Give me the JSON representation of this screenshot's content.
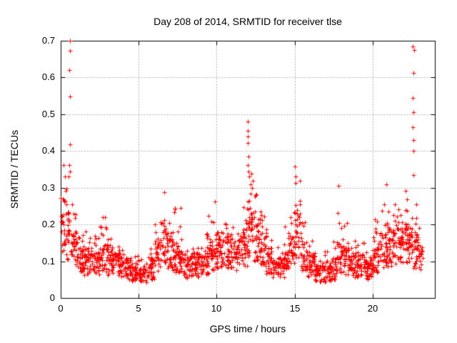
{
  "chart": {
    "title": "Day 208 of 2014, SRMTID for receiver tlse",
    "xlabel": "GPS time / hours",
    "ylabel": "SRMTID / TECUs",
    "x_ticks": [
      0,
      5,
      10,
      15,
      20
    ],
    "x_tick_labels": [
      "0",
      "5",
      "10",
      "15",
      "20"
    ],
    "y_ticks": [
      0,
      0.1,
      0.2,
      0.3,
      0.4,
      0.5,
      0.6,
      0.7
    ],
    "y_tick_labels": [
      "0",
      "0.1",
      "0.2",
      "0.3",
      "0.4",
      "0.5",
      "0.6",
      "0.7"
    ],
    "xlim": [
      0,
      24
    ],
    "ylim": [
      0,
      0.7
    ],
    "grid": true,
    "colors": {
      "marker": "#ff0000",
      "grid": "#b0b0b0",
      "axis": "#000000",
      "background": "#ffffff"
    }
  },
  "chart_data": {
    "type": "scatter",
    "series_name": "SRMTID",
    "marker": "plus",
    "marker_size": 7,
    "seed": 7,
    "x_units": "hours",
    "y_units": "TECUs",
    "band_bins_format": [
      "hour_start",
      "hour_end",
      "median",
      "max",
      "count"
    ],
    "band_bins": [
      [
        0.0,
        0.3,
        0.2,
        0.37,
        26
      ],
      [
        0.3,
        0.6,
        0.17,
        0.33,
        26
      ],
      [
        0.6,
        1.0,
        0.13,
        0.26,
        30
      ],
      [
        1.0,
        1.5,
        0.11,
        0.2,
        40
      ],
      [
        1.5,
        2.0,
        0.1,
        0.18,
        40
      ],
      [
        2.0,
        2.5,
        0.1,
        0.17,
        40
      ],
      [
        2.5,
        3.0,
        0.11,
        0.22,
        40
      ],
      [
        3.0,
        3.5,
        0.1,
        0.17,
        40
      ],
      [
        3.5,
        4.0,
        0.09,
        0.15,
        40
      ],
      [
        4.0,
        4.5,
        0.08,
        0.14,
        40
      ],
      [
        4.5,
        5.0,
        0.07,
        0.12,
        38
      ],
      [
        5.0,
        5.5,
        0.065,
        0.11,
        36
      ],
      [
        5.5,
        6.0,
        0.08,
        0.16,
        38
      ],
      [
        6.0,
        6.4,
        0.12,
        0.22,
        30
      ],
      [
        6.4,
        6.8,
        0.15,
        0.29,
        32
      ],
      [
        6.8,
        7.2,
        0.13,
        0.22,
        32
      ],
      [
        7.2,
        7.6,
        0.11,
        0.25,
        32
      ],
      [
        7.6,
        8.0,
        0.1,
        0.22,
        32
      ],
      [
        8.0,
        8.5,
        0.085,
        0.15,
        40
      ],
      [
        8.5,
        9.0,
        0.09,
        0.16,
        40
      ],
      [
        9.0,
        9.5,
        0.1,
        0.18,
        40
      ],
      [
        9.5,
        10.0,
        0.12,
        0.26,
        40
      ],
      [
        10.0,
        10.5,
        0.13,
        0.22,
        42
      ],
      [
        10.5,
        11.0,
        0.13,
        0.22,
        42
      ],
      [
        11.0,
        11.5,
        0.12,
        0.2,
        40
      ],
      [
        11.5,
        12.0,
        0.14,
        0.28,
        40
      ],
      [
        12.0,
        12.4,
        0.18,
        0.34,
        34
      ],
      [
        12.4,
        12.8,
        0.16,
        0.3,
        34
      ],
      [
        12.8,
        13.2,
        0.13,
        0.24,
        34
      ],
      [
        13.2,
        13.6,
        0.1,
        0.18,
        34
      ],
      [
        13.6,
        14.1,
        0.08,
        0.14,
        38
      ],
      [
        14.1,
        14.6,
        0.09,
        0.2,
        38
      ],
      [
        14.6,
        15.0,
        0.13,
        0.28,
        32
      ],
      [
        15.0,
        15.4,
        0.17,
        0.33,
        34
      ],
      [
        15.4,
        15.8,
        0.12,
        0.22,
        32
      ],
      [
        15.8,
        16.3,
        0.09,
        0.16,
        38
      ],
      [
        16.3,
        16.8,
        0.07,
        0.12,
        38
      ],
      [
        16.8,
        17.3,
        0.07,
        0.13,
        38
      ],
      [
        17.3,
        17.7,
        0.08,
        0.18,
        30
      ],
      [
        17.7,
        18.1,
        0.11,
        0.3,
        32
      ],
      [
        18.1,
        18.5,
        0.1,
        0.24,
        32
      ],
      [
        18.5,
        19.0,
        0.09,
        0.16,
        40
      ],
      [
        19.0,
        19.5,
        0.09,
        0.16,
        40
      ],
      [
        19.5,
        20.0,
        0.08,
        0.15,
        40
      ],
      [
        20.0,
        20.5,
        0.11,
        0.22,
        42
      ],
      [
        20.5,
        21.0,
        0.13,
        0.3,
        42
      ],
      [
        21.0,
        21.5,
        0.14,
        0.27,
        42
      ],
      [
        21.5,
        22.0,
        0.15,
        0.28,
        42
      ],
      [
        22.0,
        22.5,
        0.15,
        0.3,
        42
      ],
      [
        22.5,
        23.0,
        0.13,
        0.27,
        40
      ],
      [
        23.0,
        23.25,
        0.1,
        0.15,
        14
      ]
    ],
    "outliers": [
      [
        0.58,
        0.7
      ],
      [
        0.6,
        0.672
      ],
      [
        0.57,
        0.62
      ],
      [
        0.6,
        0.548
      ],
      [
        0.58,
        0.418
      ],
      [
        0.55,
        0.362
      ],
      [
        0.59,
        0.345
      ],
      [
        0.52,
        0.33
      ],
      [
        12.0,
        0.48
      ],
      [
        12.02,
        0.455
      ],
      [
        11.99,
        0.44
      ],
      [
        12.01,
        0.422
      ],
      [
        12.04,
        0.385
      ],
      [
        12.0,
        0.362
      ],
      [
        12.03,
        0.345
      ],
      [
        12.1,
        0.33
      ],
      [
        12.18,
        0.31
      ],
      [
        12.26,
        0.3
      ],
      [
        12.32,
        0.318
      ],
      [
        15.02,
        0.358
      ],
      [
        15.06,
        0.33
      ],
      [
        22.6,
        0.685
      ],
      [
        22.66,
        0.675
      ],
      [
        22.62,
        0.612
      ],
      [
        22.6,
        0.545
      ],
      [
        22.63,
        0.505
      ],
      [
        22.6,
        0.465
      ],
      [
        22.64,
        0.43
      ],
      [
        22.61,
        0.4
      ],
      [
        22.62,
        0.335
      ],
      [
        20.9,
        0.31
      ],
      [
        17.82,
        0.305
      ],
      [
        9.9,
        0.262
      ],
      [
        6.62,
        0.288
      ],
      [
        2.72,
        0.22
      ],
      [
        7.7,
        0.245
      ]
    ]
  }
}
